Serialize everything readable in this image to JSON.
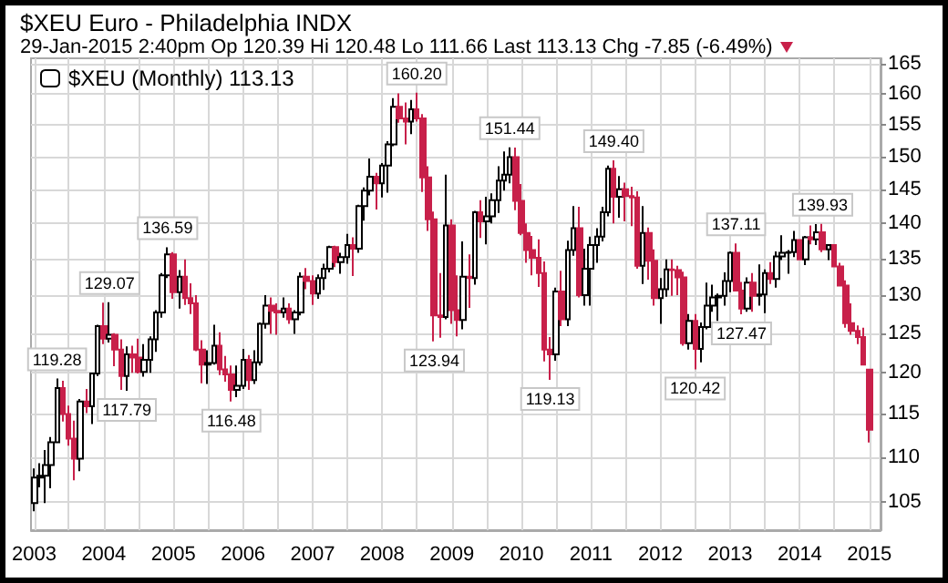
{
  "chart_data": {
    "type": "candlestick",
    "title": "$XEU Euro - Philadelphia INDX",
    "subtitle": "29-Jan-2015 2:40pm   Op 120.39  Hi 120.48  Lo 111.66  Last 113.13  Chg -7.85 (-6.49%)",
    "x": [
      "2003-01",
      "2003-02",
      "2003-03",
      "2003-04",
      "2003-05",
      "2003-06",
      "2003-07",
      "2003-08",
      "2003-09",
      "2003-10",
      "2003-11",
      "2003-12",
      "2004-01",
      "2004-02",
      "2004-03",
      "2004-04",
      "2004-05",
      "2004-06",
      "2004-07",
      "2004-08",
      "2004-09",
      "2004-10",
      "2004-11",
      "2004-12",
      "2005-01",
      "2005-02",
      "2005-03",
      "2005-04",
      "2005-05",
      "2005-06",
      "2005-07",
      "2005-08",
      "2005-09",
      "2005-10",
      "2005-11",
      "2005-12",
      "2006-01",
      "2006-02",
      "2006-03",
      "2006-04",
      "2006-05",
      "2006-06",
      "2006-07",
      "2006-08",
      "2006-09",
      "2006-10",
      "2006-11",
      "2006-12",
      "2007-01",
      "2007-02",
      "2007-03",
      "2007-04",
      "2007-05",
      "2007-06",
      "2007-07",
      "2007-08",
      "2007-09",
      "2007-10",
      "2007-11",
      "2007-12",
      "2008-01",
      "2008-02",
      "2008-03",
      "2008-04",
      "2008-05",
      "2008-06",
      "2008-07",
      "2008-08",
      "2008-09",
      "2008-10",
      "2008-11",
      "2008-12",
      "2009-01",
      "2009-02",
      "2009-03",
      "2009-04",
      "2009-05",
      "2009-06",
      "2009-07",
      "2009-08",
      "2009-09",
      "2009-10",
      "2009-11",
      "2009-12",
      "2010-01",
      "2010-02",
      "2010-03",
      "2010-04",
      "2010-05",
      "2010-06",
      "2010-07",
      "2010-08",
      "2010-09",
      "2010-10",
      "2010-11",
      "2010-12",
      "2011-01",
      "2011-02",
      "2011-03",
      "2011-04",
      "2011-05",
      "2011-06",
      "2011-07",
      "2011-08",
      "2011-09",
      "2011-10",
      "2011-11",
      "2011-12",
      "2012-01",
      "2012-02",
      "2012-03",
      "2012-04",
      "2012-05",
      "2012-06",
      "2012-07",
      "2012-08",
      "2012-09",
      "2012-10",
      "2012-11",
      "2012-12",
      "2013-01",
      "2013-02",
      "2013-03",
      "2013-04",
      "2013-05",
      "2013-06",
      "2013-07",
      "2013-08",
      "2013-09",
      "2013-10",
      "2013-11",
      "2013-12",
      "2014-01",
      "2014-02",
      "2014-03",
      "2014-04",
      "2014-05",
      "2014-06",
      "2014-07",
      "2014-08",
      "2014-09",
      "2014-10",
      "2014-11",
      "2014-12",
      "2015-01"
    ],
    "series": [
      {
        "name": "$XEU (Monthly) 113.13",
        "colors": [
          "#ffffff",
          "#ffffff",
          "#ffffff",
          "#ffffff",
          "#ffffff",
          "#c8204a",
          "#c8204a",
          "#c8204a",
          "#ffffff",
          "#c8204a",
          "#ffffff",
          "#ffffff",
          "#c8204a",
          "#ffffff",
          "#c8204a",
          "#c8204a",
          "#ffffff",
          "#c8204a",
          "#c8204a",
          "#ffffff",
          "#ffffff",
          "#ffffff",
          "#ffffff",
          "#ffffff",
          "#c8204a",
          "#ffffff",
          "#c8204a",
          "#c8204a",
          "#c8204a",
          "#c8204a",
          "#ffffff",
          "#ffffff",
          "#c8204a",
          "#c8204a",
          "#c8204a",
          "#ffffff",
          "#ffffff",
          "#c8204a",
          "#ffffff",
          "#ffffff",
          "#ffffff",
          "#c8204a",
          "#c8204a",
          "#ffffff",
          "#c8204a",
          "#ffffff",
          "#ffffff",
          "#c8204a",
          "#c8204a",
          "#ffffff",
          "#ffffff",
          "#ffffff",
          "#c8204a",
          "#ffffff",
          "#ffffff",
          "#c8204a",
          "#ffffff",
          "#ffffff",
          "#ffffff",
          "#c8204a",
          "#ffffff",
          "#ffffff",
          "#ffffff",
          "#c8204a",
          "#c8204a",
          "#ffffff",
          "#c8204a",
          "#c8204a",
          "#c8204a",
          "#c8204a",
          "#c8204a",
          "#ffffff",
          "#c8204a",
          "#c8204a",
          "#ffffff",
          "#c8204a",
          "#ffffff",
          "#c8204a",
          "#ffffff",
          "#ffffff",
          "#ffffff",
          "#ffffff",
          "#ffffff",
          "#c8204a",
          "#c8204a",
          "#c8204a",
          "#c8204a",
          "#c8204a",
          "#c8204a",
          "#c8204a",
          "#ffffff",
          "#c8204a",
          "#ffffff",
          "#ffffff",
          "#c8204a",
          "#ffffff",
          "#ffffff",
          "#ffffff",
          "#ffffff",
          "#ffffff",
          "#c8204a",
          "#ffffff",
          "#c8204a",
          "#c8204a",
          "#c8204a",
          "#ffffff",
          "#c8204a",
          "#c8204a",
          "#ffffff",
          "#ffffff",
          "#c8204a",
          "#c8204a",
          "#c8204a",
          "#ffffff",
          "#c8204a",
          "#ffffff",
          "#ffffff",
          "#ffffff",
          "#ffffff",
          "#ffffff",
          "#ffffff",
          "#c8204a",
          "#c8204a",
          "#ffffff",
          "#c8204a",
          "#ffffff",
          "#ffffff",
          "#c8204a",
          "#ffffff",
          "#ffffff",
          "#ffffff",
          "#ffffff",
          "#c8204a",
          "#ffffff",
          "#c8204a",
          "#ffffff",
          "#c8204a",
          "#ffffff",
          "#c8204a",
          "#c8204a",
          "#c8204a",
          "#c8204a",
          "#c8204a",
          "#c8204a",
          "#c8204a"
        ],
        "ohlc": [
          [
            104.9,
            108.7,
            104.0,
            107.7
          ],
          [
            107.7,
            109.3,
            106.6,
            107.9
          ],
          [
            107.9,
            110.8,
            104.9,
            109.1
          ],
          [
            109.1,
            112.3,
            106.5,
            111.7
          ],
          [
            111.7,
            119.28,
            111.6,
            118.1
          ],
          [
            118.1,
            119.0,
            114.1,
            115.0
          ],
          [
            115.0,
            116.0,
            111.3,
            112.1
          ],
          [
            112.1,
            114.2,
            107.4,
            109.8
          ],
          [
            109.8,
            116.8,
            108.4,
            116.5
          ],
          [
            116.5,
            118.0,
            115.1,
            115.9
          ],
          [
            115.9,
            120.0,
            113.8,
            119.9
          ],
          [
            119.9,
            126.1,
            119.6,
            125.9
          ],
          [
            125.9,
            129.0,
            123.6,
            124.3
          ],
          [
            124.3,
            129.07,
            123.8,
            124.8
          ],
          [
            124.8,
            125.0,
            120.8,
            122.9
          ],
          [
            122.9,
            124.2,
            117.9,
            119.6
          ],
          [
            119.6,
            123.3,
            117.79,
            122.3
          ],
          [
            122.3,
            123.4,
            120.0,
            121.9
          ],
          [
            121.9,
            124.3,
            119.9,
            120.1
          ],
          [
            120.1,
            123.6,
            119.5,
            121.6
          ],
          [
            121.6,
            124.6,
            120.0,
            124.2
          ],
          [
            124.2,
            128.0,
            122.6,
            127.7
          ],
          [
            127.7,
            133.0,
            127.0,
            132.7
          ],
          [
            132.7,
            136.59,
            132.3,
            135.6
          ],
          [
            135.6,
            135.9,
            129.5,
            130.4
          ],
          [
            130.4,
            133.4,
            128.2,
            132.5
          ],
          [
            132.5,
            134.9,
            128.7,
            129.6
          ],
          [
            129.6,
            131.6,
            127.5,
            128.9
          ],
          [
            128.9,
            130.0,
            122.7,
            122.9
          ],
          [
            122.9,
            124.1,
            118.7,
            121.0
          ],
          [
            121.0,
            122.8,
            118.6,
            121.2
          ],
          [
            121.2,
            126.1,
            121.0,
            123.4
          ],
          [
            123.4,
            125.1,
            119.7,
            120.4
          ],
          [
            120.4,
            122.1,
            118.9,
            119.8
          ],
          [
            119.8,
            120.9,
            116.48,
            117.9
          ],
          [
            117.9,
            120.9,
            117.0,
            118.4
          ],
          [
            118.4,
            123.0,
            118.0,
            121.6
          ],
          [
            121.6,
            122.2,
            117.9,
            119.1
          ],
          [
            119.1,
            122.8,
            118.6,
            121.3
          ],
          [
            121.3,
            126.4,
            120.9,
            126.2
          ],
          [
            126.2,
            130.0,
            125.6,
            128.6
          ],
          [
            128.6,
            129.7,
            124.9,
            127.9
          ],
          [
            127.9,
            128.9,
            124.8,
            127.7
          ],
          [
            127.7,
            129.7,
            127.0,
            128.2
          ],
          [
            128.2,
            128.9,
            126.2,
            126.8
          ],
          [
            126.8,
            128.0,
            124.9,
            127.7
          ],
          [
            127.7,
            133.1,
            127.3,
            132.5
          ],
          [
            132.5,
            133.7,
            130.8,
            131.9
          ],
          [
            131.9,
            132.7,
            128.7,
            130.2
          ],
          [
            130.2,
            132.8,
            129.5,
            132.3
          ],
          [
            132.3,
            134.3,
            130.7,
            133.6
          ],
          [
            133.6,
            136.8,
            133.1,
            136.6
          ],
          [
            136.6,
            136.8,
            133.8,
            134.5
          ],
          [
            134.5,
            135.8,
            132.9,
            135.2
          ],
          [
            135.2,
            138.5,
            134.3,
            136.9
          ],
          [
            136.9,
            138.0,
            132.6,
            136.4
          ],
          [
            136.4,
            142.7,
            135.8,
            142.5
          ],
          [
            142.5,
            145.3,
            140.4,
            144.8
          ],
          [
            144.8,
            149.7,
            144.1,
            146.9
          ],
          [
            146.9,
            147.5,
            142.0,
            145.9
          ],
          [
            145.9,
            149.0,
            143.8,
            148.6
          ],
          [
            148.6,
            152.4,
            144.5,
            151.9
          ],
          [
            151.9,
            159.3,
            151.6,
            157.9
          ],
          [
            157.9,
            160.1,
            155.3,
            156.0
          ],
          [
            156.0,
            158.6,
            151.9,
            155.5
          ],
          [
            155.5,
            159.0,
            153.5,
            157.5
          ],
          [
            157.5,
            160.2,
            155.5,
            156.0
          ],
          [
            156.0,
            156.7,
            144.6,
            146.8
          ],
          [
            146.8,
            148.5,
            138.9,
            140.6
          ],
          [
            140.6,
            141.7,
            123.94,
            127.3
          ],
          [
            127.3,
            133.0,
            124.4,
            127.1
          ],
          [
            127.1,
            147.2,
            126.8,
            139.7
          ],
          [
            139.7,
            140.6,
            126.2,
            128.0
          ],
          [
            128.0,
            132.7,
            124.6,
            126.7
          ],
          [
            126.7,
            137.4,
            125.5,
            132.5
          ],
          [
            132.5,
            135.6,
            128.3,
            132.3
          ],
          [
            132.3,
            141.8,
            131.4,
            141.6
          ],
          [
            141.6,
            143.4,
            137.9,
            140.3
          ],
          [
            140.3,
            143.9,
            137.0,
            141.0
          ],
          [
            141.0,
            144.4,
            140.0,
            143.4
          ],
          [
            143.4,
            148.5,
            141.5,
            146.3
          ],
          [
            146.3,
            150.8,
            144.8,
            147.2
          ],
          [
            147.2,
            151.44,
            145.9,
            149.9
          ],
          [
            149.9,
            151.4,
            141.9,
            143.3
          ],
          [
            143.3,
            145.8,
            138.3,
            138.6
          ],
          [
            138.6,
            140.0,
            134.4,
            136.2
          ],
          [
            136.2,
            138.2,
            132.7,
            135.1
          ],
          [
            135.1,
            137.7,
            131.1,
            133.0
          ],
          [
            133.0,
            134.6,
            121.4,
            122.9
          ],
          [
            122.9,
            124.5,
            119.13,
            122.3
          ],
          [
            122.3,
            131.0,
            121.5,
            130.5
          ],
          [
            130.5,
            133.3,
            125.9,
            126.8
          ],
          [
            126.8,
            137.5,
            125.9,
            136.2
          ],
          [
            136.2,
            142.5,
            135.4,
            139.3
          ],
          [
            139.3,
            142.4,
            129.7,
            130.0
          ],
          [
            130.0,
            136.4,
            128.6,
            133.6
          ],
          [
            133.6,
            138.1,
            128.6,
            136.9
          ],
          [
            136.9,
            139.3,
            134.4,
            138.1
          ],
          [
            138.1,
            142.4,
            137.4,
            141.6
          ],
          [
            141.6,
            148.6,
            141.0,
            148.1
          ],
          [
            148.1,
            149.4,
            140.0,
            143.9
          ],
          [
            143.9,
            147.0,
            140.8,
            145.0
          ],
          [
            145.0,
            146.0,
            140.3,
            144.0
          ],
          [
            144.0,
            145.4,
            139.6,
            143.8
          ],
          [
            143.8,
            144.7,
            133.6,
            134.0
          ],
          [
            134.0,
            142.5,
            131.5,
            138.6
          ],
          [
            138.6,
            139.4,
            132.1,
            134.7
          ],
          [
            134.7,
            136.3,
            128.6,
            129.6
          ],
          [
            129.6,
            132.3,
            126.2,
            130.8
          ],
          [
            130.8,
            134.9,
            129.8,
            133.5
          ],
          [
            133.5,
            134.9,
            129.9,
            133.4
          ],
          [
            133.4,
            134.0,
            130.0,
            132.4
          ],
          [
            132.4,
            133.2,
            123.4,
            123.7
          ],
          [
            123.7,
            127.5,
            122.9,
            126.6
          ],
          [
            126.6,
            127.5,
            120.42,
            123.0
          ],
          [
            123.0,
            126.4,
            121.3,
            125.8
          ],
          [
            125.8,
            131.7,
            125.5,
            128.6
          ],
          [
            128.6,
            131.4,
            127.8,
            129.7
          ],
          [
            129.7,
            130.2,
            126.6,
            129.9
          ],
          [
            129.9,
            133.1,
            128.6,
            131.9
          ],
          [
            131.9,
            136.0,
            130.4,
            135.8
          ],
          [
            135.8,
            137.11,
            130.5,
            130.6
          ],
          [
            130.6,
            131.8,
            127.47,
            128.2
          ],
          [
            128.2,
            132.4,
            127.8,
            131.7
          ],
          [
            131.7,
            133.0,
            127.8,
            129.9
          ],
          [
            129.9,
            134.2,
            128.6,
            130.1
          ],
          [
            130.1,
            133.5,
            127.6,
            133.0
          ],
          [
            133.0,
            134.5,
            131.5,
            132.2
          ],
          [
            132.2,
            136.0,
            131.0,
            135.3
          ],
          [
            135.3,
            138.3,
            134.8,
            135.8
          ],
          [
            135.8,
            136.2,
            132.9,
            135.9
          ],
          [
            135.9,
            138.9,
            135.2,
            137.6
          ],
          [
            137.6,
            137.7,
            134.8,
            134.9
          ],
          [
            134.9,
            138.2,
            134.1,
            138.0
          ],
          [
            138.0,
            139.7,
            137.0,
            137.7
          ],
          [
            137.7,
            139.9,
            136.9,
            138.7
          ],
          [
            138.7,
            139.93,
            135.9,
            136.3
          ],
          [
            136.3,
            137.0,
            134.8,
            136.9
          ],
          [
            136.9,
            137.0,
            133.8,
            133.9
          ],
          [
            133.9,
            134.4,
            131.2,
            131.3
          ],
          [
            131.3,
            132.0,
            125.7,
            126.3
          ],
          [
            126.3,
            128.9,
            124.8,
            125.3
          ],
          [
            125.3,
            126.0,
            123.6,
            124.5
          ],
          [
            124.5,
            125.7,
            120.9,
            121.0
          ],
          [
            120.39,
            120.48,
            111.66,
            113.13
          ]
        ]
      }
    ],
    "annotations": [
      {
        "text": "119.28",
        "x": "2003-05",
        "y": 119.28
      },
      {
        "text": "129.07",
        "x": "2004-02",
        "y": 129.07
      },
      {
        "text": "117.79",
        "x": "2004-05",
        "y": 117.79
      },
      {
        "text": "136.59",
        "x": "2004-12",
        "y": 136.59
      },
      {
        "text": "116.48",
        "x": "2005-11",
        "y": 116.48
      },
      {
        "text": "160.20",
        "x": "2008-07",
        "y": 160.2
      },
      {
        "text": "123.94",
        "x": "2008-10",
        "y": 123.94
      },
      {
        "text": "151.44",
        "x": "2009-11",
        "y": 151.44
      },
      {
        "text": "119.13",
        "x": "2010-06",
        "y": 119.13
      },
      {
        "text": "149.40",
        "x": "2011-05",
        "y": 149.4
      },
      {
        "text": "120.42",
        "x": "2012-07",
        "y": 120.42
      },
      {
        "text": "137.11",
        "x": "2013-02",
        "y": 137.11
      },
      {
        "text": "127.47",
        "x": "2013-03",
        "y": 127.47
      },
      {
        "text": "139.93",
        "x": "2014-05",
        "y": 139.93
      }
    ],
    "xlim": [
      "2002-12-15",
      "2015-03"
    ],
    "xticks": [
      {
        "value": "2003",
        "label": "2003"
      },
      {
        "value": "2003-07",
        "label": null
      },
      {
        "value": "2004",
        "label": "2004"
      },
      {
        "value": "2004-07",
        "label": null
      },
      {
        "value": "2005",
        "label": "2005"
      },
      {
        "value": "2005-07",
        "label": null
      },
      {
        "value": "2006",
        "label": "2006"
      },
      {
        "value": "2006-07",
        "label": null
      },
      {
        "value": "2007",
        "label": "2007"
      },
      {
        "value": "2007-07",
        "label": null
      },
      {
        "value": "2008",
        "label": "2008"
      },
      {
        "value": "2008-07",
        "label": null
      },
      {
        "value": "2009",
        "label": "2009"
      },
      {
        "value": "2009-07",
        "label": null
      },
      {
        "value": "2010",
        "label": "2010"
      },
      {
        "value": "2010-07",
        "label": null
      },
      {
        "value": "2011",
        "label": "2011"
      },
      {
        "value": "2011-07",
        "label": null
      },
      {
        "value": "2012",
        "label": "2012"
      },
      {
        "value": "2012-07",
        "label": null
      },
      {
        "value": "2013",
        "label": "2013"
      },
      {
        "value": "2013-07",
        "label": null
      },
      {
        "value": "2014",
        "label": "2014"
      },
      {
        "value": "2014-07",
        "label": null
      },
      {
        "value": "2015",
        "label": "2015"
      }
    ],
    "ylim": [
      102,
      166
    ],
    "yticks": [
      105,
      110,
      115,
      120,
      125,
      130,
      135,
      140,
      145,
      150,
      155,
      160,
      165
    ],
    "log": "y",
    "grid": true,
    "legend": "top left"
  }
}
